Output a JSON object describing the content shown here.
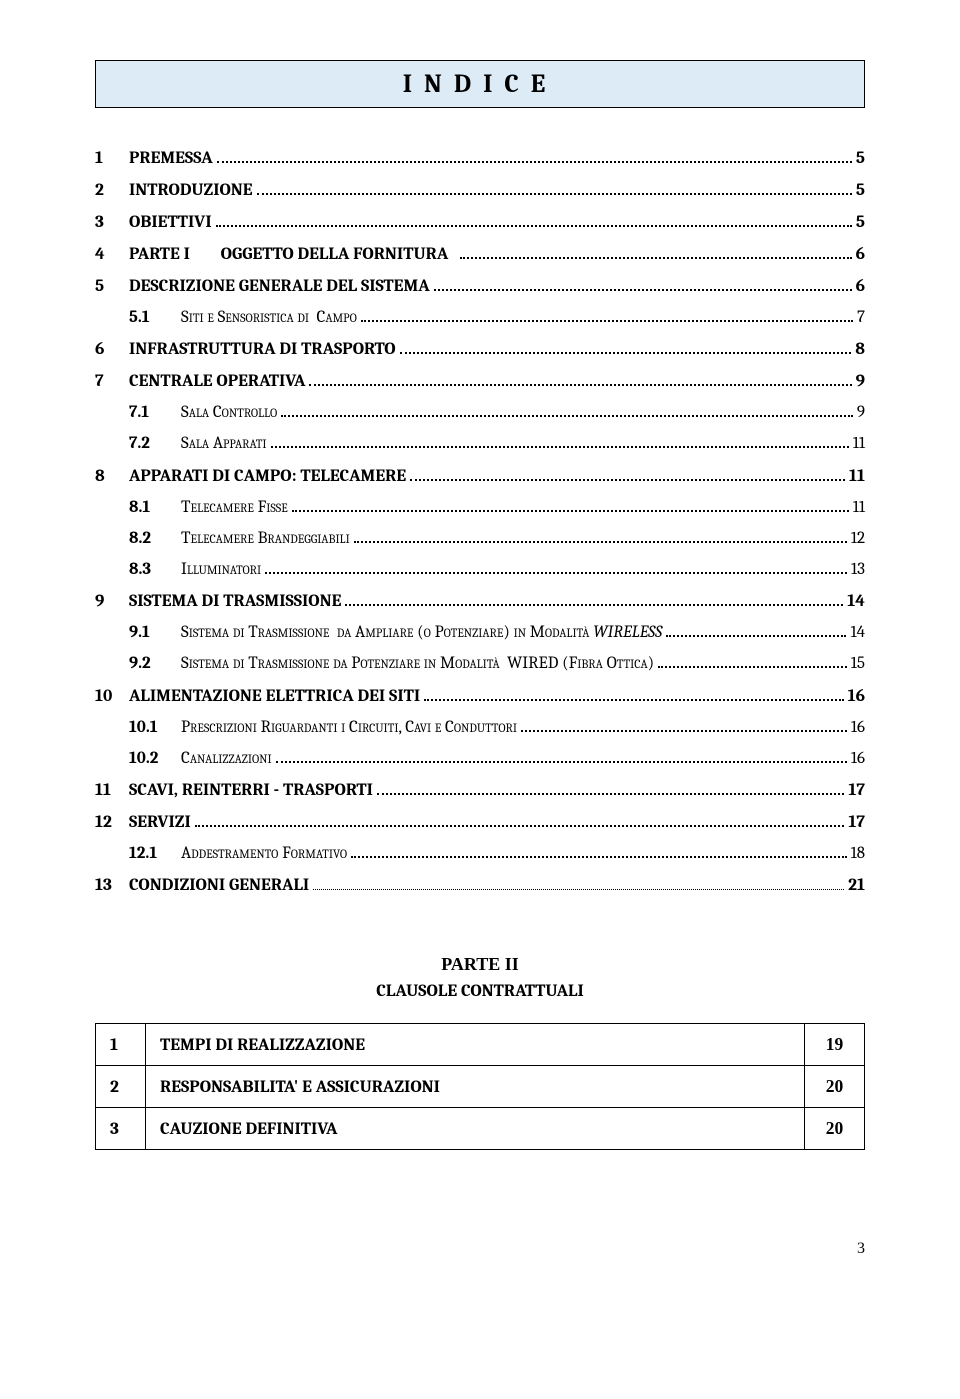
{
  "title": "INDICE",
  "toc": [
    {
      "type": "l1",
      "num": "1",
      "label": "PREMESSA",
      "page": "5"
    },
    {
      "type": "l1",
      "num": "2",
      "label": "INTRODUZIONE",
      "page": "5"
    },
    {
      "type": "l1",
      "num": "3",
      "label": "OBIETTIVI",
      "page": "5"
    },
    {
      "type": "l1",
      "num": "4",
      "label": "PARTE I",
      "extra": "OGGETTO DELLA FORNITURA",
      "page": "6"
    },
    {
      "type": "l1",
      "num": "5",
      "label": "DESCRIZIONE GENERALE DEL SISTEMA",
      "page": "6"
    },
    {
      "type": "l2",
      "num": "5.1",
      "label": "Siti e Sensoristica di  Campo",
      "page": "7"
    },
    {
      "type": "l1",
      "num": "6",
      "label": "INFRASTRUTTURA DI TRASPORTO",
      "page": "8"
    },
    {
      "type": "l1",
      "num": "7",
      "label": "CENTRALE OPERATIVA",
      "page": "9"
    },
    {
      "type": "l2",
      "num": "7.1",
      "label": "Sala Controllo",
      "page": "9"
    },
    {
      "type": "l2",
      "num": "7.2",
      "label": "Sala Apparati",
      "page": "11"
    },
    {
      "type": "l1",
      "num": "8",
      "label": "APPARATI DI CAMPO: TELECAMERE",
      "page": "11"
    },
    {
      "type": "l2",
      "num": "8.1",
      "label": "Telecamere Fisse",
      "page": "11"
    },
    {
      "type": "l2",
      "num": "8.2",
      "label": "Telecamere Brandeggiabili",
      "page": "12"
    },
    {
      "type": "l2",
      "num": "8.3",
      "label": "Illuminatori",
      "page": "13"
    },
    {
      "type": "l1",
      "num": "9",
      "label": "SISTEMA DI TRASMISSIONE",
      "page": "14"
    },
    {
      "type": "l2",
      "num": "9.1",
      "label": "Sistema di Trasmissione  da Ampliare (o Potenziare) in Modalità WIRELESS",
      "page": "14",
      "italic_tail": "WIRELESS"
    },
    {
      "type": "l2",
      "num": "9.2",
      "label": "Sistema di Trasmissione da Potenziare in Modalità  WIRED (Fibra Ottica)",
      "page": "15"
    },
    {
      "type": "l1",
      "num": "10",
      "label": "ALIMENTAZIONE ELETTRICA DEI SITI",
      "page": "16"
    },
    {
      "type": "l2",
      "num": "10.1",
      "label": "Prescrizioni Riguardanti i Circuiti, Cavi e Conduttori",
      "page": "16"
    },
    {
      "type": "l2",
      "num": "10.2",
      "label": "Canalizzazioni",
      "page": "16"
    },
    {
      "type": "l1",
      "num": "11",
      "label": "SCAVI, REINTERRI - TRASPORTI",
      "page": "17"
    },
    {
      "type": "l1",
      "num": "12",
      "label": "SERVIZI",
      "page": "17"
    },
    {
      "type": "l2",
      "num": "12.1",
      "label": "Addestramento Formativo",
      "page": "18"
    },
    {
      "type": "l1x",
      "num": "13",
      "label": "CONDIZIONI GENERALI",
      "page": "21"
    }
  ],
  "part2": {
    "title": "PARTE II",
    "subtitle": "CLAUSOLE CONTRATTUALI",
    "rows": [
      {
        "num": "1",
        "label": "TEMPI DI REALIZZAZIONE",
        "page": "19"
      },
      {
        "num": "2",
        "label": "RESPONSABILITA' E ASSICURAZIONI",
        "page": "20"
      },
      {
        "num": "3",
        "label": "CAUZIONE DEFINITIVA",
        "page": "20"
      }
    ]
  },
  "footer_page": "3"
}
